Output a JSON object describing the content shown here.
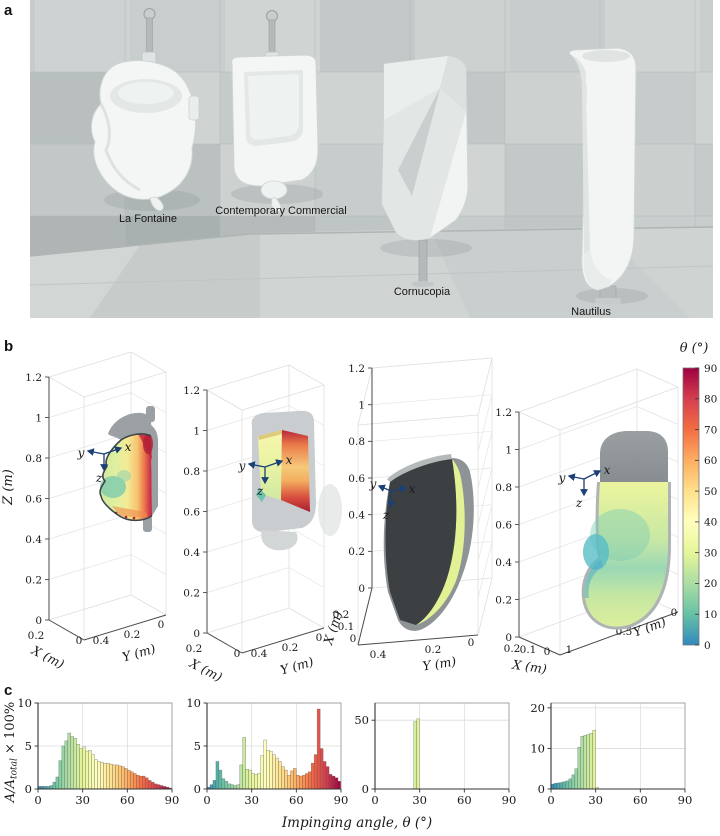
{
  "figure_labels": {
    "a": "a",
    "b": "b",
    "c": "c"
  },
  "photo": {
    "labels": [
      "La Fontaine",
      "Contemporary Commercial",
      "Cornucopia",
      "Nautilus"
    ]
  },
  "plots3d": {
    "zlabel": "Z (m)",
    "xlabel": "X (m)",
    "ylabel": "Y (m)",
    "axis_names": {
      "x": "x",
      "y": "y",
      "z": "z"
    },
    "items": [
      {
        "name": "La Fontaine",
        "zticks": [
          "0",
          "0.2",
          "0.4",
          "0.6",
          "0.8",
          "1",
          "1.2"
        ],
        "xticks": [
          "0.2",
          "0"
        ],
        "yticks": [
          "0.4",
          "0.2",
          "0"
        ]
      },
      {
        "name": "Contemporary Commercial",
        "zticks": [
          "0",
          "0.2",
          "0.4",
          "0.6",
          "0.8",
          "1",
          "1.2"
        ],
        "xticks": [
          "0.2",
          "0"
        ],
        "yticks": [
          "0.4",
          "0.2",
          "0"
        ]
      },
      {
        "name": "Cornucopia",
        "zticks": [
          "0",
          "0.2",
          "0.4",
          "0.6",
          "0.8",
          "1",
          "1.2"
        ],
        "xticks": [
          "0.2",
          "0.1",
          "0"
        ],
        "yticks": [
          "0.4",
          "0.2",
          "0"
        ]
      },
      {
        "name": "Nautilus",
        "zticks": [
          "0",
          "0.2",
          "0.4",
          "0.6",
          "0.8",
          "1",
          "1.2"
        ],
        "xticks": [
          "0.2",
          "0.1",
          "0"
        ],
        "yticks": [
          "1",
          "0.5",
          "0"
        ]
      }
    ]
  },
  "colorbar": {
    "title": "θ (°)",
    "min": 0,
    "max": 90,
    "ticks": [
      0,
      10,
      20,
      30,
      40,
      50,
      60,
      70,
      80,
      90
    ],
    "stop_values": [
      0,
      10,
      20,
      30,
      40,
      50,
      60,
      70,
      80,
      90
    ],
    "stop_colors": [
      "#3288bd",
      "#66c2a5",
      "#abdda4",
      "#e6f598",
      "#ffffbf",
      "#fee08b",
      "#fdae61",
      "#f46d43",
      "#d53e4f",
      "#9e0142"
    ]
  },
  "axis_c": {
    "xlabel": "Impinging angle, θ (°)",
    "ylabel_prefix": "A/A",
    "ylabel_sub": "total",
    "ylabel_suffix": " × 100%"
  },
  "chart_data": [
    {
      "type": "bar",
      "title": "La Fontaine",
      "xlabel": "Impinging angle, θ (°)",
      "ylabel": "A/A_total × 100%",
      "bin_start": 0,
      "bin_width": 2,
      "x_range": [
        0,
        90
      ],
      "xticks": [
        0,
        30,
        60,
        90
      ],
      "ylim": [
        0,
        10
      ],
      "yticks": [
        0,
        5,
        10
      ],
      "color_by": "bin angle via colorbar spectral scale",
      "values": [
        0.3,
        0.3,
        0.3,
        0.3,
        0.4,
        0.8,
        1.4,
        3.3,
        5.0,
        5.6,
        6.5,
        6.1,
        5.9,
        5.2,
        4.7,
        4.9,
        4.4,
        4.5,
        4.0,
        3.4,
        3.2,
        3.1,
        3.0,
        3.0,
        2.9,
        2.8,
        2.8,
        2.7,
        2.6,
        2.4,
        2.2,
        2.0,
        1.8,
        1.6,
        1.5,
        1.5,
        1.3,
        1.0,
        0.8,
        0.6,
        0.5,
        0.4,
        0.3,
        0.2,
        0.1
      ]
    },
    {
      "type": "bar",
      "title": "Contemporary Commercial",
      "xlabel": "Impinging angle, θ (°)",
      "ylabel": "A/A_total × 100%",
      "bin_start": 0,
      "bin_width": 2,
      "x_range": [
        0,
        90
      ],
      "xticks": [
        0,
        30,
        60,
        90
      ],
      "ylim": [
        0,
        10
      ],
      "yticks": [
        0,
        5,
        10
      ],
      "color_by": "bin angle via colorbar spectral scale",
      "values": [
        0.2,
        0.5,
        1.0,
        3.2,
        2.2,
        1.2,
        0.9,
        0.6,
        0.5,
        0.4,
        0.5,
        2.8,
        6.0,
        2.3,
        2.2,
        1.8,
        1.7,
        1.8,
        3.9,
        5.7,
        4.5,
        4.4,
        4.0,
        3.6,
        3.2,
        2.6,
        2.2,
        1.6,
        2.1,
        2.4,
        1.6,
        1.5,
        1.6,
        1.8,
        2.0,
        3.0,
        4.0,
        9.3,
        4.7,
        3.2,
        2.6,
        1.7,
        1.5,
        1.3,
        0.9
      ]
    },
    {
      "type": "bar",
      "title": "Cornucopia",
      "xlabel": "Impinging angle, θ (°)",
      "ylabel": "A/A_total × 100%",
      "bin_start": 0,
      "bin_width": 2,
      "x_range": [
        0,
        90
      ],
      "xticks": [
        0,
        30,
        60,
        90
      ],
      "ylim": [
        0,
        62.5
      ],
      "yticks": [
        0,
        50
      ],
      "color_by": "bin angle via colorbar spectral scale",
      "values": [
        0,
        0,
        0,
        0,
        0,
        0,
        0,
        0,
        0,
        0,
        0,
        0,
        0,
        49,
        51,
        0,
        0,
        0,
        0,
        0,
        0,
        0,
        0,
        0,
        0,
        0,
        0,
        0,
        0,
        0,
        0,
        0,
        0,
        0,
        0,
        0,
        0,
        0,
        0,
        0,
        0,
        0,
        0,
        0,
        0
      ]
    },
    {
      "type": "bar",
      "title": "Nautilus",
      "xlabel": "Impinging angle, θ (°)",
      "ylabel": "A/A_total × 100%",
      "bin_start": 0,
      "bin_width": 2,
      "x_range": [
        0,
        90
      ],
      "xticks": [
        0,
        30,
        60,
        90
      ],
      "ylim": [
        0,
        21.2
      ],
      "yticks": [
        0,
        10,
        20
      ],
      "color_by": "bin angle via colorbar spectral scale",
      "values": [
        1.2,
        1.4,
        1.5,
        1.6,
        1.8,
        2.0,
        2.5,
        3.5,
        5.0,
        10.3,
        13.0,
        13.2,
        13.4,
        13.7,
        14.5,
        0.4,
        0,
        0,
        0,
        0,
        0,
        0,
        0,
        0,
        0,
        0,
        0,
        0,
        0,
        0,
        0,
        0,
        0,
        0,
        0,
        0,
        0,
        0,
        0,
        0,
        0,
        0,
        0,
        0,
        0
      ]
    }
  ]
}
